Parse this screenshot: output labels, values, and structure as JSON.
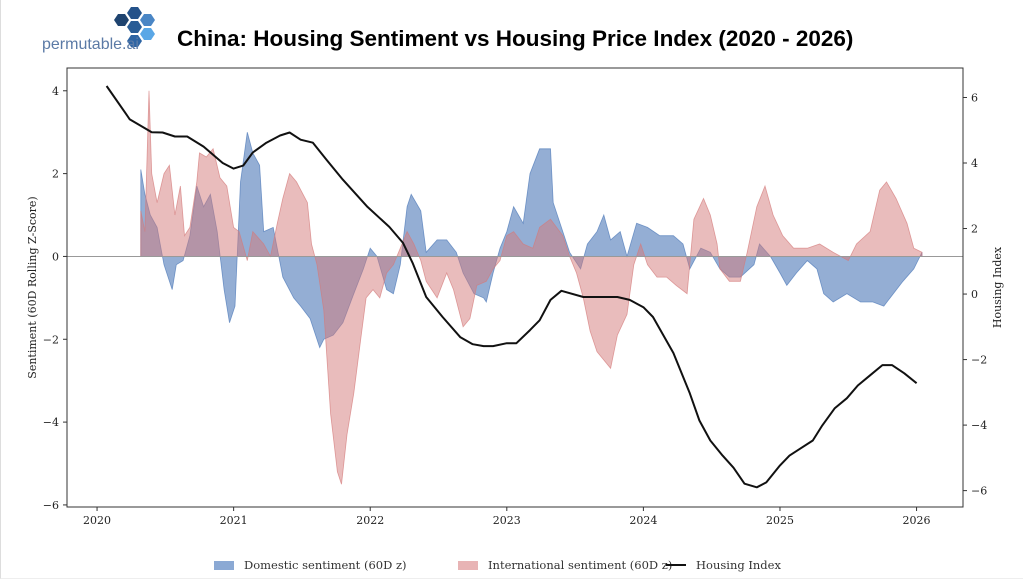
{
  "brand": {
    "name": "permutable.ai",
    "logo": "hexagon-cluster-logo"
  },
  "title": "China: Housing Sentiment vs Housing Price Index (2020 - 2026)",
  "chart_data": {
    "type": "area",
    "title": "China: Housing Sentiment vs Housing Price Index (2020 - 2026)",
    "xlabel": "",
    "ylabel": "Sentiment (60D Rolling Z-Score)",
    "y2label": "Housing Index",
    "xlim": [
      2019.78,
      2026.34
    ],
    "ylim": [
      -6.05,
      4.55
    ],
    "y2lim": [
      -6.5,
      6.9
    ],
    "x_ticks": [
      2020,
      2021,
      2022,
      2023,
      2024,
      2025,
      2026
    ],
    "x_tick_labels": [
      "2020",
      "2021",
      "2022",
      "2023",
      "2024",
      "2025",
      "2026"
    ],
    "y_ticks": [
      4,
      2,
      0,
      -2,
      -4,
      -6
    ],
    "y_tick_labels": [
      "4",
      "2",
      "0",
      "−2",
      "−4",
      "−6"
    ],
    "y2_ticks": [
      6,
      4,
      2,
      0,
      -2,
      -4,
      -6
    ],
    "y2_tick_labels": [
      "6",
      "4",
      "2",
      "0",
      "−2",
      "−4",
      "−6"
    ],
    "grid": false,
    "legend": "bottom-center",
    "zero_line": true,
    "series": [
      {
        "name": "Domestic sentiment (60D z)",
        "kind": "fill",
        "axis": "left",
        "color": "#4c78b8",
        "x": [
          2020.32,
          2020.35,
          2020.39,
          2020.44,
          2020.49,
          2020.55,
          2020.58,
          2020.63,
          2020.68,
          2020.73,
          2020.78,
          2020.83,
          2020.88,
          2020.93,
          2020.97,
          2021.01,
          2021.05,
          2021.1,
          2021.14,
          2021.19,
          2021.22,
          2021.29,
          2021.36,
          2021.44,
          2021.49,
          2021.56,
          2021.63,
          2021.66,
          2021.73,
          2021.8,
          2021.88,
          2021.95,
          2022.0,
          2022.05,
          2022.12,
          2022.17,
          2022.22,
          2022.27,
          2022.3,
          2022.37,
          2022.41,
          2022.49,
          2022.56,
          2022.63,
          2022.68,
          2022.76,
          2022.83,
          2022.85,
          2022.9,
          2022.95,
          2023.0,
          2023.05,
          2023.12,
          2023.17,
          2023.24,
          2023.32,
          2023.34,
          2023.41,
          2023.46,
          2023.54,
          2023.59,
          2023.66,
          2023.71,
          2023.76,
          2023.83,
          2023.88,
          2023.95,
          2024.03,
          2024.12,
          2024.22,
          2024.29,
          2024.34,
          2024.42,
          2024.49,
          2024.56,
          2024.63,
          2024.71,
          2024.81,
          2024.85,
          2024.93,
          2025.0,
          2025.05,
          2025.12,
          2025.2,
          2025.27,
          2025.32,
          2025.39,
          2025.49,
          2025.59,
          2025.68,
          2025.76,
          2025.83,
          2025.9,
          2025.98,
          2026.04
        ],
        "values": [
          2.1,
          1.5,
          1.0,
          0.7,
          -0.2,
          -0.8,
          -0.2,
          -0.1,
          0.5,
          1.7,
          1.2,
          1.5,
          0.6,
          -0.8,
          -1.6,
          -1.2,
          1.8,
          3.0,
          2.5,
          2.2,
          0.6,
          0.7,
          -0.5,
          -1.0,
          -1.2,
          -1.5,
          -2.2,
          -2.0,
          -1.9,
          -1.6,
          -0.9,
          -0.3,
          0.2,
          0.0,
          -0.8,
          -0.9,
          -0.2,
          1.2,
          1.5,
          1.1,
          0.1,
          0.4,
          0.4,
          0.1,
          -0.4,
          -0.9,
          -1.0,
          -1.1,
          -0.4,
          0.2,
          0.6,
          1.2,
          0.8,
          2.0,
          2.6,
          2.6,
          1.3,
          0.6,
          0.1,
          -0.3,
          0.3,
          0.6,
          1.0,
          0.4,
          0.6,
          0.0,
          0.8,
          0.7,
          0.5,
          0.5,
          0.3,
          -0.3,
          0.2,
          0.1,
          -0.3,
          -0.5,
          -0.5,
          -0.2,
          0.3,
          0.0,
          -0.4,
          -0.7,
          -0.4,
          -0.1,
          -0.3,
          -0.9,
          -1.1,
          -0.9,
          -1.1,
          -1.1,
          -1.2,
          -0.9,
          -0.6,
          -0.3,
          0.1
        ]
      },
      {
        "name": "International sentiment (60D z)",
        "kind": "fill",
        "axis": "left",
        "color": "#d47a7a",
        "x": [
          2020.32,
          2020.35,
          2020.38,
          2020.4,
          2020.44,
          2020.49,
          2020.53,
          2020.57,
          2020.61,
          2020.64,
          2020.68,
          2020.73,
          2020.75,
          2020.8,
          2020.85,
          2020.9,
          2020.95,
          2021.0,
          2021.04,
          2021.1,
          2021.14,
          2021.22,
          2021.27,
          2021.32,
          2021.36,
          2021.41,
          2021.46,
          2021.54,
          2021.57,
          2021.61,
          2021.66,
          2021.71,
          2021.76,
          2021.79,
          2021.83,
          2021.88,
          2021.93,
          2021.97,
          2022.02,
          2022.07,
          2022.12,
          2022.17,
          2022.22,
          2022.27,
          2022.32,
          2022.37,
          2022.41,
          2022.49,
          2022.56,
          2022.61,
          2022.68,
          2022.73,
          2022.78,
          2022.85,
          2022.9,
          2022.95,
          2023.0,
          2023.05,
          2023.12,
          2023.19,
          2023.24,
          2023.32,
          2023.41,
          2023.46,
          2023.51,
          2023.56,
          2023.61,
          2023.66,
          2023.76,
          2023.81,
          2023.88,
          2023.93,
          2023.98,
          2024.03,
          2024.1,
          2024.17,
          2024.24,
          2024.32,
          2024.37,
          2024.44,
          2024.49,
          2024.54,
          2024.56,
          2024.63,
          2024.71,
          2024.76,
          2024.83,
          2024.89,
          2024.95,
          2025.02,
          2025.1,
          2025.2,
          2025.29,
          2025.39,
          2025.5,
          2025.56,
          2025.66,
          2025.73,
          2025.78,
          2025.85,
          2025.93,
          2025.98,
          2026.04
        ],
        "values": [
          1.1,
          0.6,
          4.0,
          2.0,
          1.3,
          2.0,
          2.2,
          1.0,
          1.7,
          0.5,
          0.7,
          1.8,
          2.5,
          2.4,
          2.6,
          1.9,
          1.7,
          0.7,
          0.6,
          -0.1,
          0.6,
          0.3,
          0.0,
          0.8,
          1.4,
          2.0,
          1.8,
          1.3,
          0.3,
          -0.2,
          -1.3,
          -3.8,
          -5.2,
          -5.5,
          -4.3,
          -3.3,
          -2.0,
          -1.0,
          -0.8,
          -1.0,
          -0.4,
          -0.2,
          0.2,
          0.6,
          0.3,
          -0.1,
          -0.6,
          -1.0,
          -0.4,
          -0.8,
          -1.7,
          -1.5,
          -0.7,
          -0.6,
          -0.3,
          -0.1,
          0.5,
          0.6,
          0.3,
          0.2,
          0.7,
          0.9,
          0.5,
          0.0,
          -0.4,
          -1.0,
          -1.8,
          -2.3,
          -2.7,
          -1.9,
          -1.4,
          -0.2,
          0.3,
          -0.2,
          -0.5,
          -0.5,
          -0.7,
          -0.9,
          0.9,
          1.4,
          1.0,
          0.3,
          -0.3,
          -0.6,
          -0.6,
          0.1,
          1.2,
          1.7,
          1.0,
          0.5,
          0.2,
          0.2,
          0.3,
          0.1,
          -0.1,
          0.3,
          0.6,
          1.6,
          1.8,
          1.4,
          0.8,
          0.2,
          0.1
        ]
      },
      {
        "name": "Housing Index",
        "kind": "line",
        "axis": "right",
        "color": "#111111",
        "x": [
          2020.07,
          2020.24,
          2020.4,
          2020.48,
          2020.57,
          2020.66,
          2020.78,
          2020.92,
          2021.0,
          2021.07,
          2021.14,
          2021.24,
          2021.34,
          2021.41,
          2021.49,
          2021.58,
          2021.68,
          2021.8,
          2021.98,
          2022.14,
          2022.24,
          2022.31,
          2022.41,
          2022.53,
          2022.66,
          2022.75,
          2022.83,
          2022.9,
          2023.0,
          2023.07,
          2023.17,
          2023.24,
          2023.32,
          2023.4,
          2023.56,
          2023.81,
          2023.9,
          2024.0,
          2024.07,
          2024.22,
          2024.34,
          2024.41,
          2024.49,
          2024.58,
          2024.66,
          2024.74,
          2024.83,
          2024.9,
          2025.0,
          2025.07,
          2025.15,
          2025.24,
          2025.31,
          2025.4,
          2025.49,
          2025.57,
          2025.66,
          2025.75,
          2025.82,
          2025.91,
          2026.0
        ],
        "values": [
          6.35,
          5.33,
          4.94,
          4.93,
          4.81,
          4.81,
          4.5,
          4.0,
          3.83,
          3.92,
          4.32,
          4.62,
          4.84,
          4.93,
          4.71,
          4.62,
          4.1,
          3.49,
          2.66,
          2.05,
          1.56,
          0.95,
          -0.09,
          -0.7,
          -1.32,
          -1.53,
          -1.59,
          -1.59,
          -1.5,
          -1.5,
          -1.1,
          -0.8,
          -0.18,
          0.1,
          -0.09,
          -0.09,
          -0.18,
          -0.4,
          -0.7,
          -1.8,
          -3.03,
          -3.86,
          -4.47,
          -4.93,
          -5.3,
          -5.79,
          -5.9,
          -5.75,
          -5.23,
          -4.93,
          -4.71,
          -4.47,
          -4.01,
          -3.49,
          -3.18,
          -2.79,
          -2.48,
          -2.17,
          -2.17,
          -2.42,
          -2.72
        ]
      }
    ]
  },
  "legend": {
    "items": [
      {
        "label": "Domestic sentiment (60D z)",
        "color": "#4c78b8"
      },
      {
        "label": "International sentiment (60D z)",
        "color": "#d47a7a"
      },
      {
        "label": "Housing Index",
        "color": "#111111"
      }
    ]
  }
}
